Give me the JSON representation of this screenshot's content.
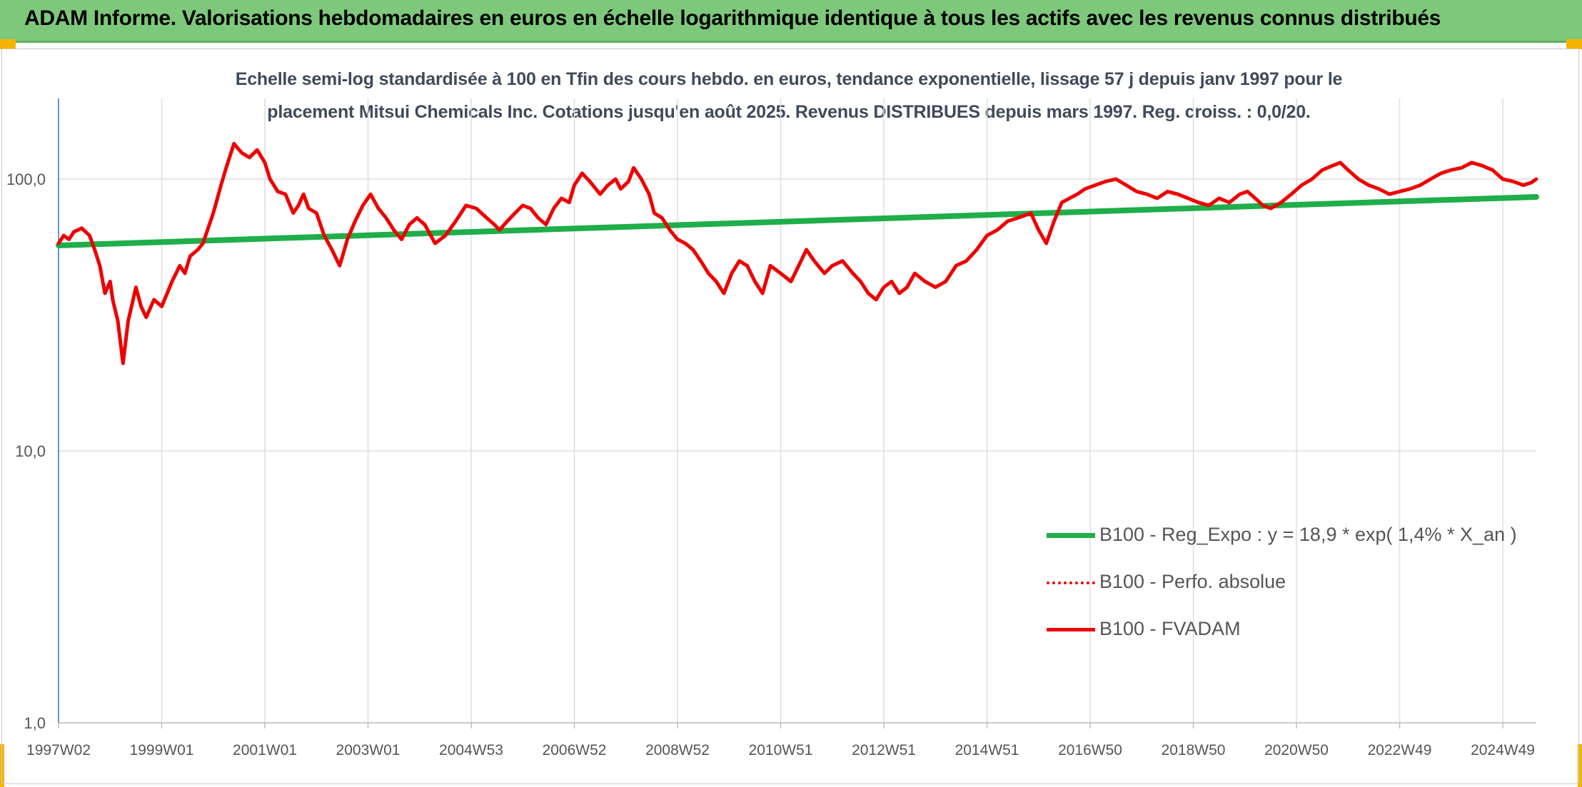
{
  "banner": {
    "title": "ADAM Informe. Valorisations hebdomadaires en euros en échelle logarithmique identique à tous les actifs avec les revenus connus distribués"
  },
  "colors": {
    "banner_bg": "#7dc87a",
    "accent_corner": "#f4b400",
    "fvadam": "#ee0000",
    "trend": "#1fae4a",
    "perf": "#ee0000",
    "grid": "#dedede",
    "axis": "#4472c4"
  },
  "chart_data": {
    "type": "line",
    "title_line1": "Echelle semi-log standardisée à 100 en Tfin des cours hebdo. en euros, tendance exponentielle, lissage 57 j depuis janv 1997 pour le",
    "title_line2": "placement Mitsui Chemicals Inc. Cotations jusqu'en août 2025. Revenus DISTRIBUES depuis mars 1997. Reg. croiss. : 0,0/20.",
    "y_scale": "log",
    "ylim": [
      1,
      200
    ],
    "y_ticks": [
      {
        "value": 1,
        "label": "1,0"
      },
      {
        "value": 10,
        "label": "10,0"
      },
      {
        "value": 100,
        "label": "100,0"
      }
    ],
    "x_range": [
      1997.0,
      2025.65
    ],
    "x_ticks": [
      {
        "value": 1997.0,
        "label": "1997W02"
      },
      {
        "value": 1999.0,
        "label": "1999W01"
      },
      {
        "value": 2001.0,
        "label": "2001W01"
      },
      {
        "value": 2003.0,
        "label": "2003W01"
      },
      {
        "value": 2005.0,
        "label": "2004W53"
      },
      {
        "value": 2007.0,
        "label": "2006W52"
      },
      {
        "value": 2009.0,
        "label": "2008W52"
      },
      {
        "value": 2011.0,
        "label": "2010W51"
      },
      {
        "value": 2013.0,
        "label": "2012W51"
      },
      {
        "value": 2015.0,
        "label": "2014W51"
      },
      {
        "value": 2017.0,
        "label": "2016W50"
      },
      {
        "value": 2019.0,
        "label": "2018W50"
      },
      {
        "value": 2021.0,
        "label": "2020W50"
      },
      {
        "value": 2023.0,
        "label": "2022W49"
      },
      {
        "value": 2025.0,
        "label": "2024W49"
      }
    ],
    "grid": true,
    "legend_position": "bottom-right",
    "legend": [
      {
        "label": "B100 - Reg_Expo : y = 18,9 * exp( 1,4% *  X_an )",
        "style": "solid-thick",
        "color": "#1fae4a"
      },
      {
        "label": "B100 - Perfo. absolue",
        "style": "dotted",
        "color": "#ee0000"
      },
      {
        "label": "B100 - FVADAM",
        "style": "solid",
        "color": "#ee0000"
      }
    ],
    "series": [
      {
        "name": "B100 - Reg_Expo : y = 18,9 * exp( 1,4% *  X_an )",
        "x": [
          1997.0,
          2025.65
        ],
        "y": [
          57,
          86
        ]
      },
      {
        "name": "B100 - FVADAM",
        "x": [
          1997.0,
          1997.1,
          1997.2,
          1997.3,
          1997.45,
          1997.6,
          1997.7,
          1997.8,
          1997.9,
          1998.0,
          1998.05,
          1998.15,
          1998.25,
          1998.35,
          1998.5,
          1998.6,
          1998.7,
          1998.85,
          1999.0,
          1999.2,
          1999.35,
          1999.45,
          1999.55,
          1999.7,
          1999.8,
          2000.0,
          2000.15,
          2000.25,
          2000.4,
          2000.55,
          2000.7,
          2000.85,
          2001.0,
          2001.1,
          2001.25,
          2001.4,
          2001.55,
          2001.65,
          2001.75,
          2001.85,
          2002.0,
          2002.15,
          2002.3,
          2002.45,
          2002.6,
          2002.75,
          2002.9,
          2003.05,
          2003.2,
          2003.35,
          2003.5,
          2003.65,
          2003.8,
          2003.95,
          2004.1,
          2004.3,
          2004.5,
          2004.7,
          2004.9,
          2005.1,
          2005.3,
          2005.45,
          2005.55,
          2005.7,
          2005.85,
          2006.0,
          2006.15,
          2006.3,
          2006.45,
          2006.6,
          2006.75,
          2006.9,
          2007.0,
          2007.15,
          2007.3,
          2007.5,
          2007.65,
          2007.8,
          2007.9,
          2008.05,
          2008.15,
          2008.3,
          2008.45,
          2008.55,
          2008.7,
          2008.85,
          2009.0,
          2009.15,
          2009.3,
          2009.45,
          2009.6,
          2009.75,
          2009.9,
          2010.05,
          2010.2,
          2010.35,
          2010.5,
          2010.65,
          2010.8,
          2011.0,
          2011.2,
          2011.35,
          2011.5,
          2011.65,
          2011.85,
          2012.0,
          2012.2,
          2012.4,
          2012.55,
          2012.7,
          2012.85,
          2013.0,
          2013.15,
          2013.3,
          2013.45,
          2013.6,
          2013.8,
          2014.0,
          2014.2,
          2014.4,
          2014.6,
          2014.8,
          2015.0,
          2015.2,
          2015.4,
          2015.6,
          2015.85,
          2016.0,
          2016.15,
          2016.3,
          2016.45,
          2016.6,
          2016.75,
          2016.9,
          2017.1,
          2017.3,
          2017.5,
          2017.7,
          2017.9,
          2018.1,
          2018.3,
          2018.5,
          2018.7,
          2018.9,
          2019.1,
          2019.3,
          2019.5,
          2019.7,
          2019.9,
          2020.05,
          2020.2,
          2020.35,
          2020.5,
          2020.7,
          2020.9,
          2021.1,
          2021.3,
          2021.5,
          2021.7,
          2021.85,
          2022.0,
          2022.2,
          2022.4,
          2022.6,
          2022.8,
          2023.0,
          2023.2,
          2023.4,
          2023.6,
          2023.8,
          2024.0,
          2024.2,
          2024.4,
          2024.6,
          2024.8,
          2025.0,
          2025.2,
          2025.4,
          2025.55,
          2025.65
        ],
        "y": [
          58,
          62,
          60,
          64,
          66,
          62,
          55,
          48,
          38,
          42,
          36,
          30,
          21,
          30,
          40,
          34,
          31,
          36,
          34,
          42,
          48,
          45,
          52,
          55,
          58,
          75,
          95,
          110,
          135,
          125,
          120,
          128,
          115,
          100,
          90,
          88,
          75,
          80,
          88,
          78,
          75,
          62,
          55,
          48,
          60,
          70,
          80,
          88,
          78,
          72,
          65,
          60,
          68,
          72,
          68,
          58,
          62,
          70,
          80,
          78,
          72,
          68,
          65,
          70,
          75,
          80,
          78,
          72,
          68,
          78,
          85,
          82,
          95,
          105,
          98,
          88,
          95,
          100,
          92,
          98,
          110,
          100,
          88,
          75,
          72,
          65,
          60,
          58,
          55,
          50,
          45,
          42,
          38,
          45,
          50,
          48,
          42,
          38,
          48,
          45,
          42,
          48,
          55,
          50,
          45,
          48,
          50,
          45,
          42,
          38,
          36,
          40,
          42,
          38,
          40,
          45,
          42,
          40,
          42,
          48,
          50,
          55,
          62,
          65,
          70,
          72,
          75,
          65,
          58,
          70,
          82,
          85,
          88,
          92,
          95,
          98,
          100,
          95,
          90,
          88,
          85,
          90,
          88,
          85,
          82,
          80,
          85,
          82,
          88,
          90,
          85,
          80,
          78,
          82,
          88,
          95,
          100,
          108,
          112,
          115,
          108,
          100,
          95,
          92,
          88,
          90,
          92,
          95,
          100,
          105,
          108,
          110,
          115,
          112,
          108,
          100,
          98,
          95,
          97,
          100
        ]
      }
    ]
  }
}
